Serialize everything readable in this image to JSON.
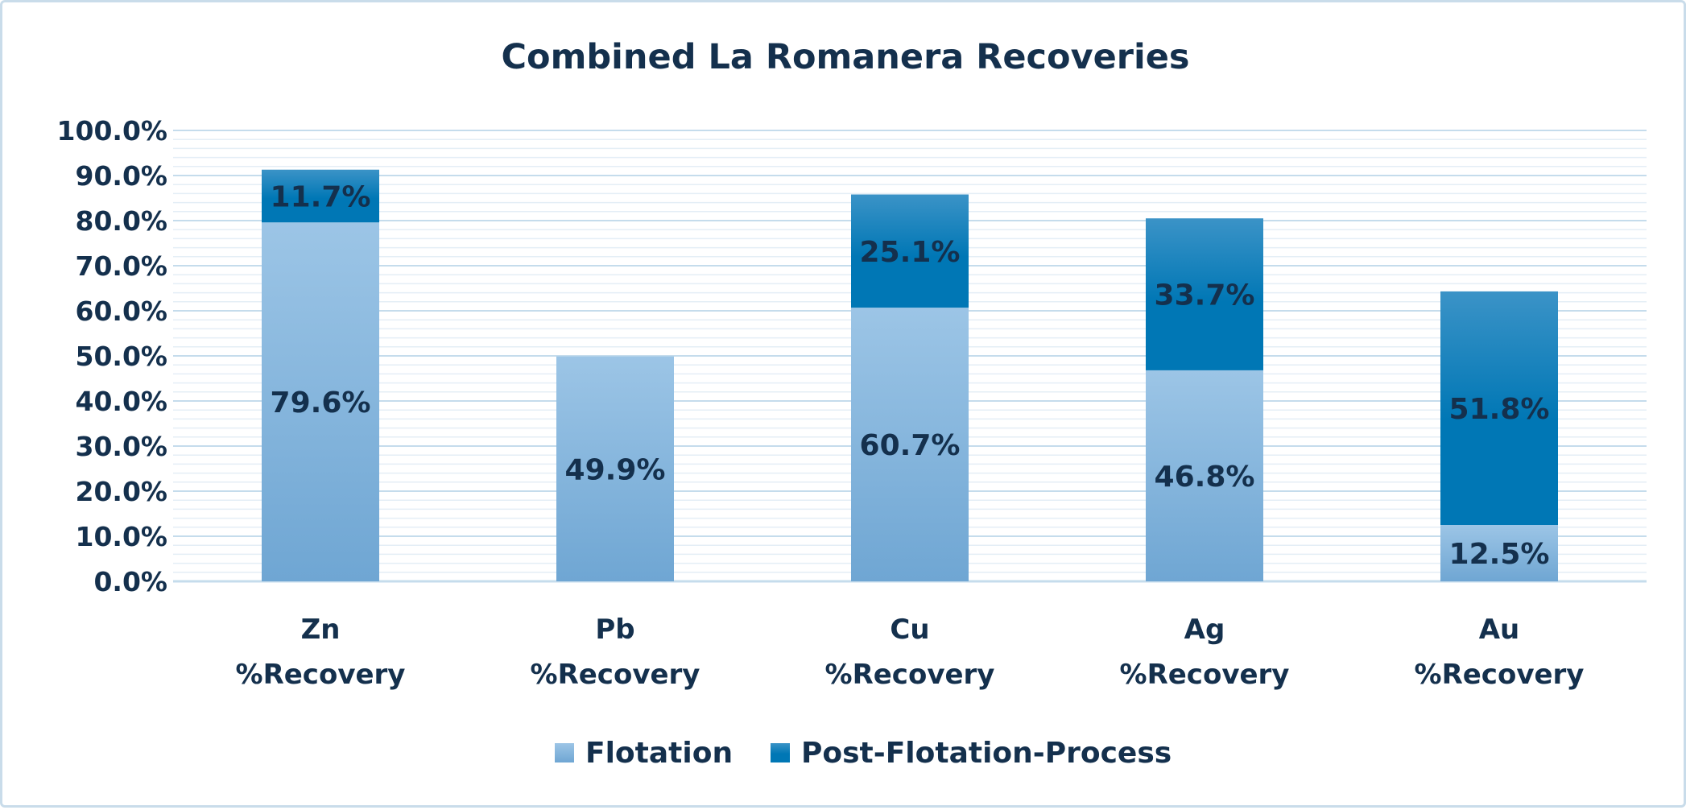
{
  "chart_data": {
    "type": "bar",
    "stacked": true,
    "title": "Combined La Romanera Recoveries",
    "categories": [
      [
        "Zn",
        "%Recovery"
      ],
      [
        "Pb",
        "%Recovery"
      ],
      [
        "Cu",
        "%Recovery"
      ],
      [
        "Ag",
        "%Recovery"
      ],
      [
        "Au",
        "%Recovery"
      ]
    ],
    "series": [
      {
        "name": "Flotation",
        "values": [
          79.6,
          49.9,
          60.7,
          46.8,
          12.5
        ],
        "labels": [
          "79.6%",
          "49.9%",
          "60.7%",
          "46.8%",
          "12.5%"
        ]
      },
      {
        "name": "Post-Flotation-Process",
        "values": [
          11.7,
          null,
          25.1,
          33.7,
          51.8
        ],
        "labels": [
          "11.7%",
          "",
          "25.1%",
          "33.7%",
          "51.8%"
        ]
      }
    ],
    "ylim": [
      0,
      100
    ],
    "yticks": [
      0,
      10,
      20,
      30,
      40,
      50,
      60,
      70,
      80,
      90,
      100
    ],
    "ytick_labels": [
      "0.0%",
      "10.0%",
      "20.0%",
      "30.0%",
      "40.0%",
      "50.0%",
      "60.0%",
      "70.0%",
      "80.0%",
      "90.0%",
      "100.0%"
    ],
    "minor_gridlines": true,
    "legend_position": "bottom",
    "colors": {
      "flotation_top": "#9cc5e6",
      "flotation_bottom": "#6fa6d3",
      "post_top": "#3b93c7",
      "post_bottom": "#0077b5",
      "text": "#14304d",
      "grid_major": "#c5dcec",
      "grid_minor": "#e4eef6"
    }
  }
}
